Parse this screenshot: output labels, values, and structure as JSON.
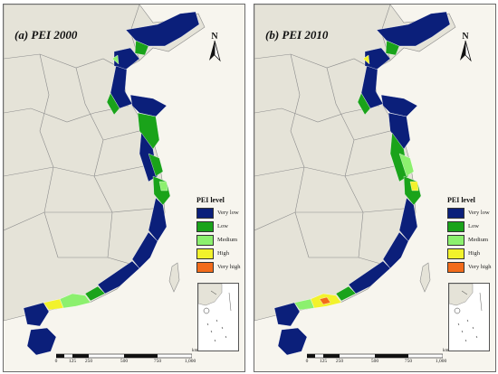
{
  "panels": [
    {
      "title": "(a) PEI 2000",
      "north_label": "N"
    },
    {
      "title": "(b) PEI 2010",
      "north_label": "N"
    }
  ],
  "legend": {
    "title": "PEI level",
    "items": [
      {
        "label": "Very low",
        "color": "#0b1f7a"
      },
      {
        "label": "Low",
        "color": "#1aa31a"
      },
      {
        "label": "Medium",
        "color": "#8cf06e"
      },
      {
        "label": "High",
        "color": "#f2f22c"
      },
      {
        "label": "Very high",
        "color": "#f26b1a"
      }
    ]
  },
  "scale_bar": {
    "labels": [
      "0",
      "125",
      "250",
      "500",
      "750",
      "1,000"
    ],
    "unit": "km"
  },
  "colors": {
    "land": "#e5e3d8",
    "sea": "#f7f5ee",
    "boundary": "#8c8c8c",
    "coast_dark": "#0b1f7a"
  }
}
